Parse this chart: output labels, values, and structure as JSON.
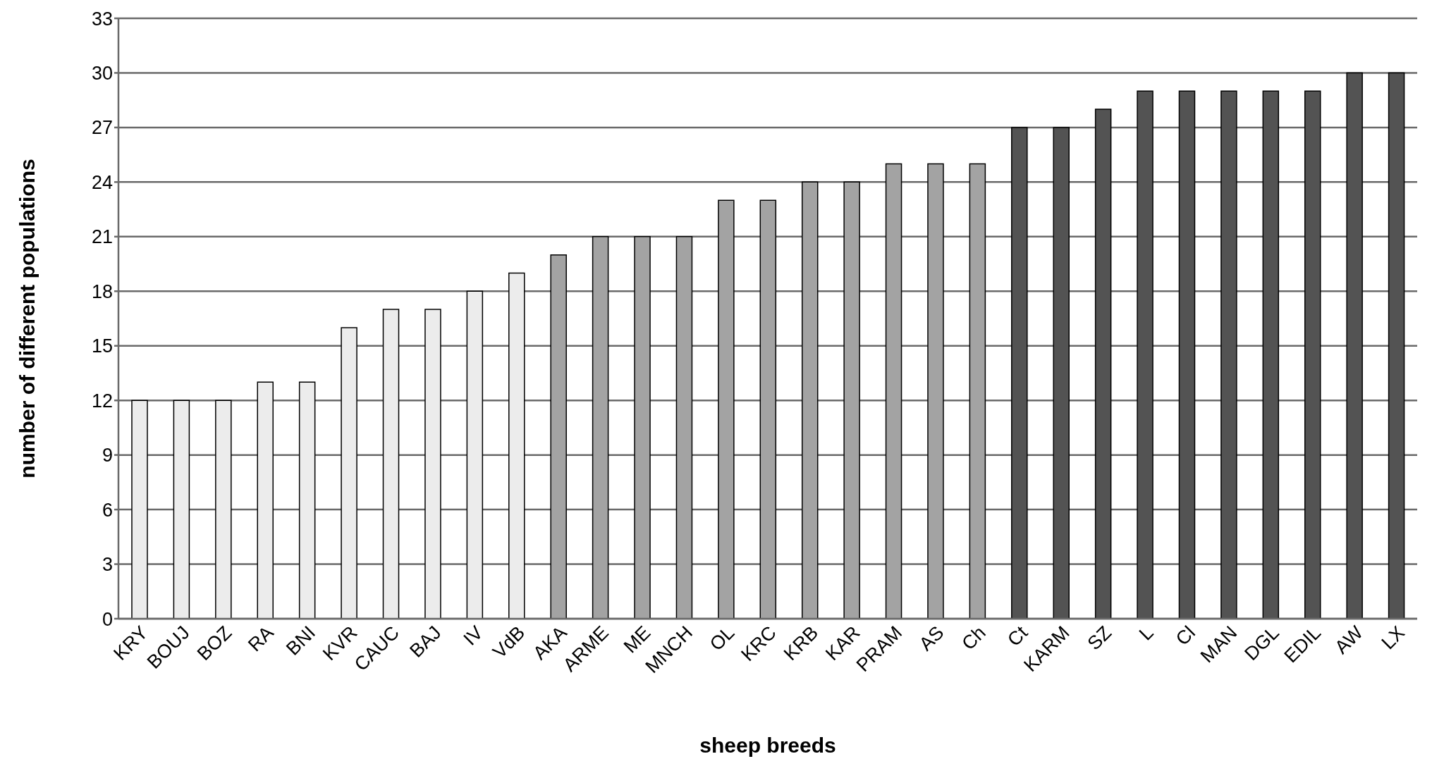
{
  "chart_data": {
    "type": "bar",
    "xlabel": "sheep breeds",
    "ylabel": "number of different populations",
    "categories": [
      "KRY",
      "BOUJ",
      "BOZ",
      "RA",
      "BNI",
      "KVR",
      "CAUC",
      "BAJ",
      "IV",
      "VdB",
      "AKA",
      "ARME",
      "ME",
      "MNCH",
      "OL",
      "KRC",
      "KRB",
      "KAR",
      "PRAM",
      "AS",
      "Ch",
      "Ct",
      "KARM",
      "SZ",
      "L",
      "Cl",
      "MAN",
      "DGL",
      "EDIL",
      "AW",
      "LX"
    ],
    "values": [
      12,
      12,
      12,
      13,
      13,
      16,
      17,
      17,
      18,
      19,
      20,
      21,
      21,
      21,
      23,
      23,
      24,
      24,
      25,
      25,
      25,
      27,
      27,
      28,
      29,
      29,
      29,
      29,
      29,
      30,
      30
    ],
    "colors": [
      "#ececec",
      "#ececec",
      "#ececec",
      "#ececec",
      "#ececec",
      "#ececec",
      "#ececec",
      "#ececec",
      "#ececec",
      "#ececec",
      "#a3a3a3",
      "#a3a3a3",
      "#a3a3a3",
      "#a3a3a3",
      "#a3a3a3",
      "#a3a3a3",
      "#a3a3a3",
      "#a3a3a3",
      "#a3a3a3",
      "#a3a3a3",
      "#a3a3a3",
      "#535353",
      "#535353",
      "#535353",
      "#535353",
      "#535353",
      "#535353",
      "#535353",
      "#535353",
      "#535353",
      "#535353"
    ],
    "ylim": [
      0,
      33
    ],
    "yticks": [
      0,
      3,
      6,
      9,
      12,
      15,
      18,
      21,
      24,
      27,
      30,
      33
    ],
    "grid": "y",
    "legend": false
  }
}
